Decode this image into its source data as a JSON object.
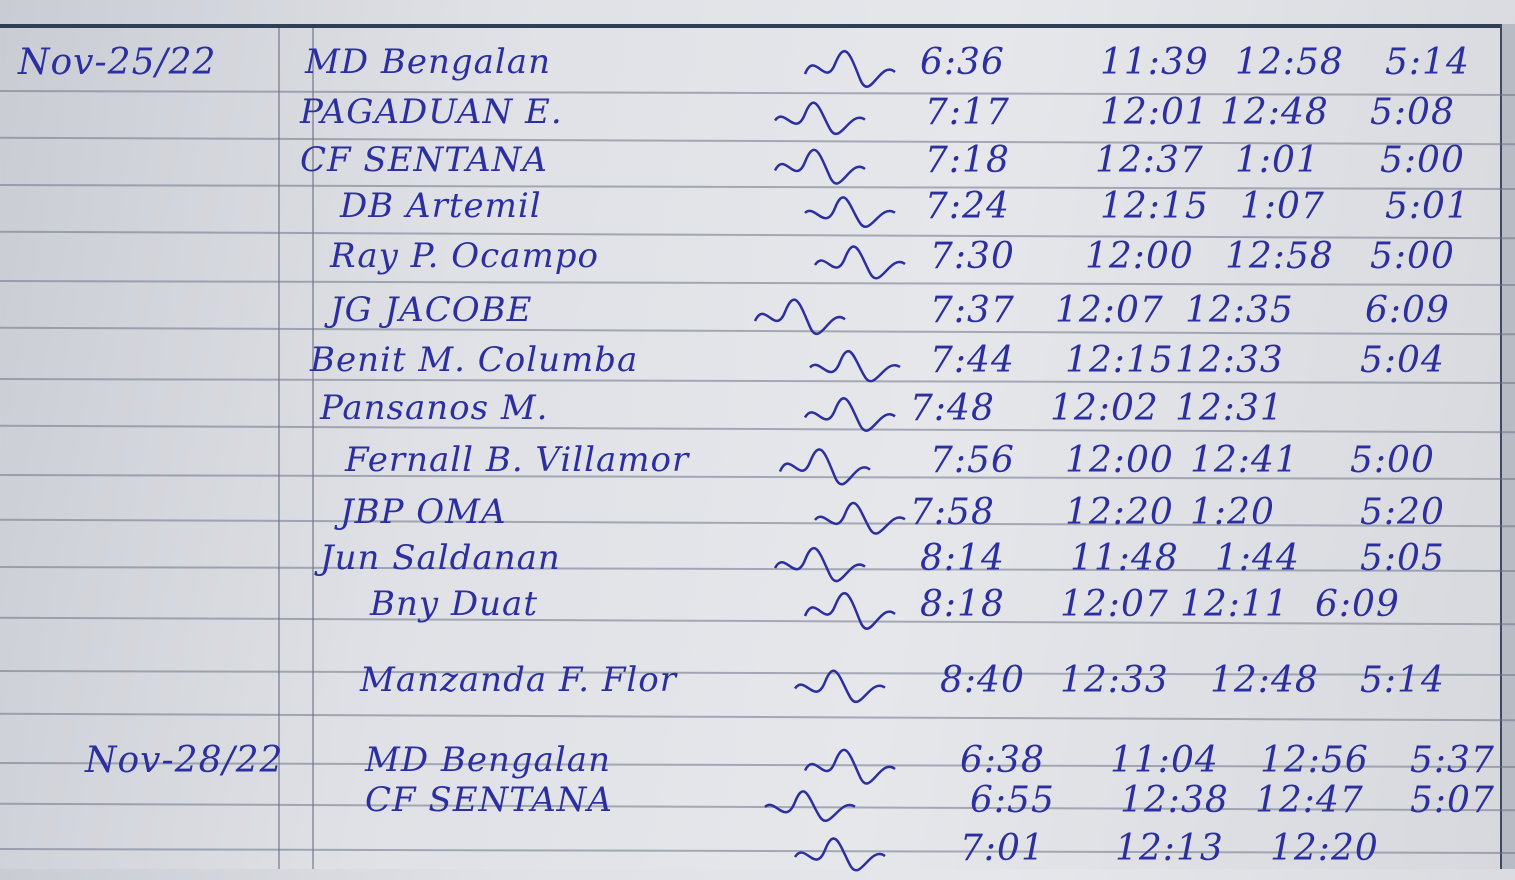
{
  "ink_color": "#2b2fa0",
  "entries": [
    {
      "date": "Nov-25/22",
      "name": "MD Bengalan",
      "time_in": "6:36",
      "lunch_out": "11:39",
      "lunch_in": "12:58",
      "time_out": "5:14"
    },
    {
      "date": "",
      "name": "PAGADUAN E.",
      "time_in": "7:17",
      "lunch_out": "12:01",
      "lunch_in": "12:48",
      "time_out": "5:08"
    },
    {
      "date": "",
      "name": "CF SENTANA",
      "time_in": "7:18",
      "lunch_out": "12:37",
      "lunch_in": "1:01",
      "time_out": "5:00"
    },
    {
      "date": "",
      "name": "DB Artemil",
      "time_in": "7:24",
      "lunch_out": "12:15",
      "lunch_in": "1:07",
      "time_out": "5:01"
    },
    {
      "date": "",
      "name": "Ray P. Ocampo",
      "time_in": "7:30",
      "lunch_out": "12:00",
      "lunch_in": "12:58",
      "time_out": "5:00"
    },
    {
      "date": "",
      "name": "JG JACOBE",
      "time_in": "7:37",
      "lunch_out": "12:07",
      "lunch_in": "12:35",
      "time_out": "6:09"
    },
    {
      "date": "",
      "name": "Benit M. Columba",
      "time_in": "7:44",
      "lunch_out": "12:15",
      "lunch_in": "12:33",
      "time_out": "5:04"
    },
    {
      "date": "",
      "name": "Pansanos M.",
      "time_in": "7:48",
      "lunch_out": "12:02",
      "lunch_in": "12:31",
      "time_out": ""
    },
    {
      "date": "",
      "name": "Fernall B. Villamor",
      "time_in": "7:56",
      "lunch_out": "12:00",
      "lunch_in": "12:41",
      "time_out": "5:00"
    },
    {
      "date": "",
      "name": "JBP OMA",
      "time_in": "7:58",
      "lunch_out": "12:20",
      "lunch_in": "1:20",
      "time_out": "5:20"
    },
    {
      "date": "",
      "name": "Jun Saldanan",
      "time_in": "8:14",
      "lunch_out": "11:48",
      "lunch_in": "1:44",
      "time_out": "5:05"
    },
    {
      "date": "",
      "name": "Bny Duat",
      "time_in": "8:18",
      "lunch_out": "12:07",
      "lunch_in": "12:11",
      "time_out": "6:09"
    },
    {
      "date": "",
      "name": "Manzanda  F. Flor",
      "time_in": "8:40",
      "lunch_out": "12:33",
      "lunch_in": "12:48",
      "time_out": "5:14"
    },
    {
      "date": "Nov-28/22",
      "name": "MD Bengalan",
      "time_in": "6:38",
      "lunch_out": "11:04",
      "lunch_in": "12:56",
      "time_out": "5:37"
    },
    {
      "date": "",
      "name": "CF SENTANA",
      "time_in": "6:55",
      "lunch_out": "12:38",
      "lunch_in": "12:47",
      "time_out": "5:07"
    },
    {
      "date": "",
      "name": "",
      "time_in": "7:01",
      "lunch_out": "12:13",
      "lunch_in": "12:20",
      "time_out": ""
    }
  ]
}
